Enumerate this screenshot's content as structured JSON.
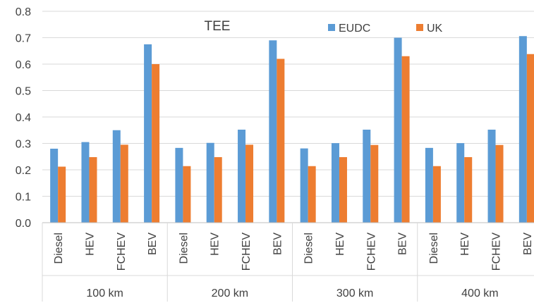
{
  "chart_data": {
    "type": "bar",
    "title": "TEE",
    "xlabel": "",
    "ylabel": "",
    "ylim": [
      0,
      0.8
    ],
    "yticks": [
      "0.0",
      "0.1",
      "0.2",
      "0.3",
      "0.4",
      "0.5",
      "0.6",
      "0.7",
      "0.8"
    ],
    "grid": true,
    "legend_position": "top-right",
    "groups": [
      "100 km",
      "200 km",
      "300 km",
      "400 km"
    ],
    "categories": [
      "Diesel",
      "HEV",
      "FCHEV",
      "BEV"
    ],
    "series": [
      {
        "name": "EUDC",
        "color": "#5b9bd5",
        "values": [
          [
            0.28,
            0.305,
            0.35,
            0.675
          ],
          [
            0.283,
            0.302,
            0.352,
            0.69
          ],
          [
            0.281,
            0.301,
            0.352,
            0.7
          ],
          [
            0.283,
            0.301,
            0.352,
            0.706
          ]
        ]
      },
      {
        "name": "UK",
        "color": "#ed7d31",
        "values": [
          [
            0.212,
            0.248,
            0.295,
            0.6
          ],
          [
            0.214,
            0.248,
            0.295,
            0.62
          ],
          [
            0.214,
            0.248,
            0.294,
            0.63
          ],
          [
            0.214,
            0.248,
            0.294,
            0.638
          ]
        ]
      }
    ]
  }
}
